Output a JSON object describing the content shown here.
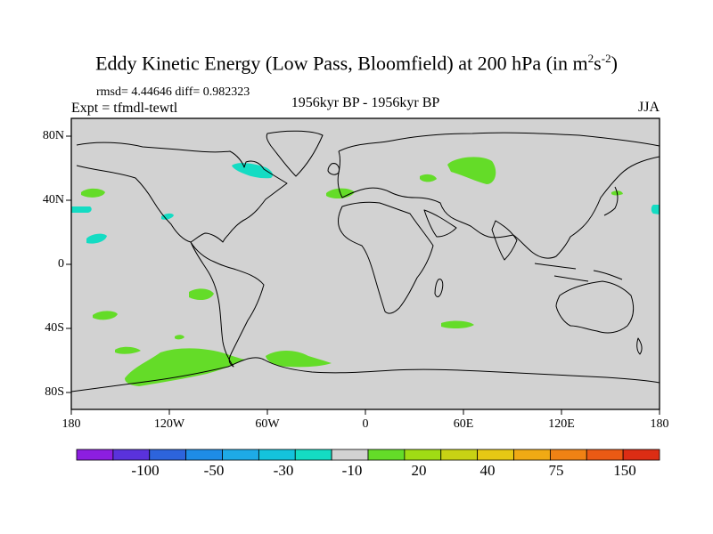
{
  "title": {
    "main": "Eddy Kinetic Energy (Low Pass, Bloomfield) at 200 hPa (in m",
    "unit_a": "s",
    "exp_a": "2",
    "exp_b": "-2",
    "close": ")"
  },
  "subtitle": {
    "stats": "rmsd= 4.44646 diff= 0.982323",
    "experiment": "Expt = tfmdl-tewtl",
    "period": "1956kyr BP - 1956kyr BP",
    "season": "JJA"
  },
  "axes": {
    "y_ticks": [
      "80N",
      "40N",
      "0",
      "40S",
      "80S"
    ],
    "x_ticks": [
      "180",
      "120W",
      "60W",
      "0",
      "60E",
      "120E",
      "180"
    ]
  },
  "colorbar": {
    "colors": [
      "#8c1ee0",
      "#5a32dc",
      "#2d64dc",
      "#1e8ce6",
      "#1eaae6",
      "#14c3dc",
      "#14dcc3",
      "#d2d2d2",
      "#64dc28",
      "#a0dc14",
      "#c8d214",
      "#e6c814",
      "#f0aa14",
      "#f08214",
      "#eb5a14",
      "#dc2d14"
    ],
    "labels": [
      "-100",
      "-50",
      "-30",
      "-10",
      "20",
      "40",
      "75",
      "150"
    ]
  },
  "map_colors": {
    "background": "#d2d2d2",
    "positive": "#64dc28",
    "negative": "#14dcc3"
  }
}
